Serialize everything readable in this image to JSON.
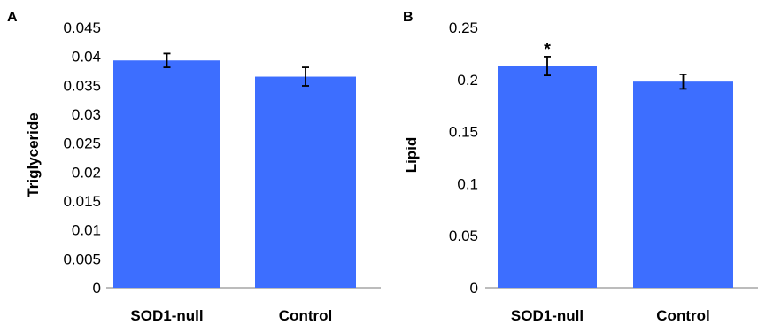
{
  "chart_data": [
    {
      "type": "bar",
      "panel_label": "A",
      "ylabel": "Triglyceride",
      "categories": [
        "SOD1-null",
        "Control"
      ],
      "values": [
        0.0393,
        0.0365
      ],
      "errors": [
        0.0012,
        0.0016
      ],
      "ylim": [
        0,
        0.045
      ],
      "yticks": [
        0,
        0.005,
        0.01,
        0.015,
        0.02,
        0.025,
        0.03,
        0.035,
        0.04,
        0.045
      ],
      "ytick_labels": [
        "0",
        "0.005",
        "0.01",
        "0.015",
        "0.02",
        "0.025",
        "0.03",
        "0.035",
        "0.04",
        "0.045"
      ],
      "annotations": [
        "",
        ""
      ],
      "bar_color": "#3d6eff",
      "grid": false
    },
    {
      "type": "bar",
      "panel_label": "B",
      "ylabel": "Lipid",
      "categories": [
        "SOD1-null",
        "Control"
      ],
      "values": [
        0.213,
        0.198
      ],
      "errors": [
        0.009,
        0.007
      ],
      "ylim": [
        0,
        0.25
      ],
      "yticks": [
        0,
        0.05,
        0.1,
        0.15,
        0.2,
        0.25
      ],
      "ytick_labels": [
        "0",
        "0.05",
        "0.1",
        "0.15",
        "0.2",
        "0.25"
      ],
      "annotations": [
        "*",
        ""
      ],
      "bar_color": "#3d6eff",
      "grid": false
    }
  ]
}
